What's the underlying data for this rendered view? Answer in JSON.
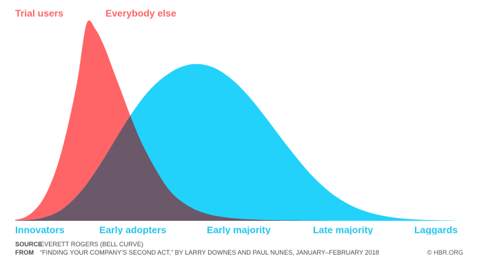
{
  "chart_data": {
    "type": "area",
    "series": [
      {
        "name": "Trial users",
        "color": "#FF6566",
        "x": [
          0,
          2,
          4,
          6,
          8,
          10,
          12,
          14,
          16,
          18,
          20,
          22,
          24,
          26,
          28,
          30,
          32,
          34,
          36,
          38,
          40,
          42,
          44,
          46,
          48,
          50,
          52,
          54,
          56,
          58,
          60,
          62,
          64,
          66,
          68,
          70,
          72,
          74,
          76,
          78,
          80,
          82,
          84,
          86,
          88,
          90,
          92,
          94,
          96,
          98,
          100
        ],
        "values": [
          0.4,
          1.6,
          4.6,
          10,
          19,
          32,
          50,
          72,
          100,
          97,
          88,
          76,
          64,
          52,
          41,
          32,
          24,
          17,
          12,
          8.6,
          6,
          4.2,
          2.9,
          2.1,
          1.5,
          1.1,
          0.8,
          0.6,
          0.4,
          0.3,
          0.2,
          0.2,
          0.1,
          0.1,
          0.1,
          0,
          0,
          0,
          0,
          0,
          0,
          0,
          0,
          0,
          0,
          0,
          0,
          0,
          0,
          0,
          0
        ]
      },
      {
        "name": "Everybody else",
        "color": "#22D2FA",
        "x": [
          0,
          2,
          4,
          6,
          8,
          10,
          12,
          14,
          16,
          18,
          20,
          22,
          24,
          26,
          28,
          30,
          32,
          34,
          36,
          38,
          40,
          42,
          44,
          46,
          48,
          50,
          52,
          54,
          56,
          58,
          60,
          62,
          64,
          66,
          68,
          70,
          72,
          74,
          76,
          78,
          80,
          82,
          84,
          86,
          88,
          90,
          92,
          94,
          96,
          98,
          100
        ],
        "values": [
          0,
          0.2,
          0.6,
          1.4,
          2.8,
          5,
          8.5,
          13,
          18.5,
          25,
          32,
          39.5,
          47,
          54,
          60.5,
          66,
          70.5,
          74,
          76.8,
          78.6,
          79.4,
          79.2,
          78,
          75.8,
          72.6,
          68.6,
          63.8,
          58.4,
          52.6,
          46.6,
          40.6,
          34.8,
          29.2,
          24,
          19.4,
          15.4,
          12,
          9.2,
          6.9,
          5.1,
          3.7,
          2.7,
          1.9,
          1.3,
          0.9,
          0.6,
          0.4,
          0.3,
          0.2,
          0.1,
          0
        ]
      }
    ],
    "overlap_color": "#6B5868",
    "categories": [
      "Innovators",
      "Early adopters",
      "Early majority",
      "Late majority",
      "Laggards"
    ],
    "xlim": [
      0,
      100
    ],
    "ylim": [
      0,
      100
    ],
    "grid": false,
    "category_color": "#22C6EE"
  },
  "footer": {
    "source_label": "SOURCE",
    "source_text": "EVERETT ROGERS (BELL CURVE)",
    "from_label": "FROM",
    "from_text": "“FINDING YOUR COMPANY’S SECOND ACT,” BY LARRY DOWNES AND PAUL NUNES, JANUARY–FEBRUARY 2018",
    "credit": "© HBR.ORG"
  }
}
